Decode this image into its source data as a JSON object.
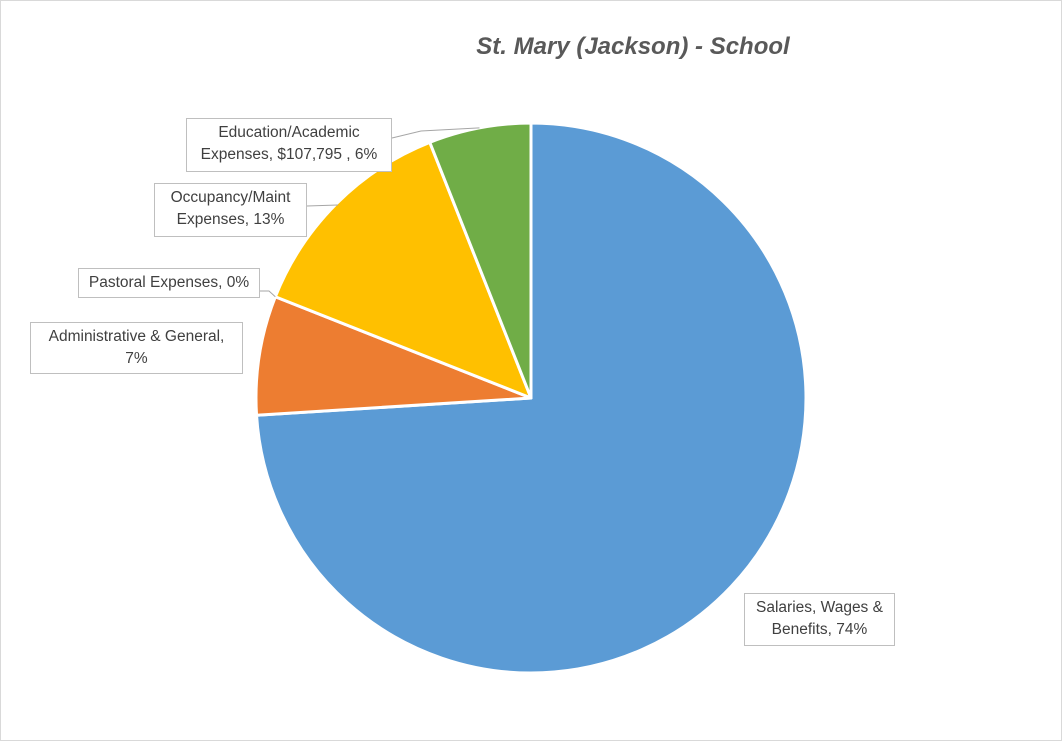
{
  "chart_data": {
    "type": "pie",
    "title": "St. Mary (Jackson) - School",
    "slices": [
      {
        "label": "Salaries, Wages & Benefits",
        "label_line1": "Salaries, Wages &",
        "label_line2": "Benefits, 74%",
        "percent": 74,
        "color": "#5b9bd5"
      },
      {
        "label": "Administrative & General",
        "label_line1": "Administrative & General,",
        "label_line2": "7%",
        "percent": 7,
        "color": "#ed7d31"
      },
      {
        "label": "Pastoral Expenses",
        "label_line1": "Pastoral Expenses, 0%",
        "label_line2": "",
        "percent": 0,
        "color": "#a5a5a5"
      },
      {
        "label": "Occupancy/Maint Expenses",
        "label_line1": "Occupancy/Maint",
        "label_line2": "Expenses, 13%",
        "percent": 13,
        "color": "#ffc000"
      },
      {
        "label": "Education/Academic Expenses",
        "label_line1": "Education/Academic",
        "label_line2": "Expenses,  $107,795 , 6%",
        "value": 107795,
        "percent": 6,
        "color": "#70ad47"
      }
    ],
    "legend": "none",
    "slice_border_color": "#ffffff"
  }
}
